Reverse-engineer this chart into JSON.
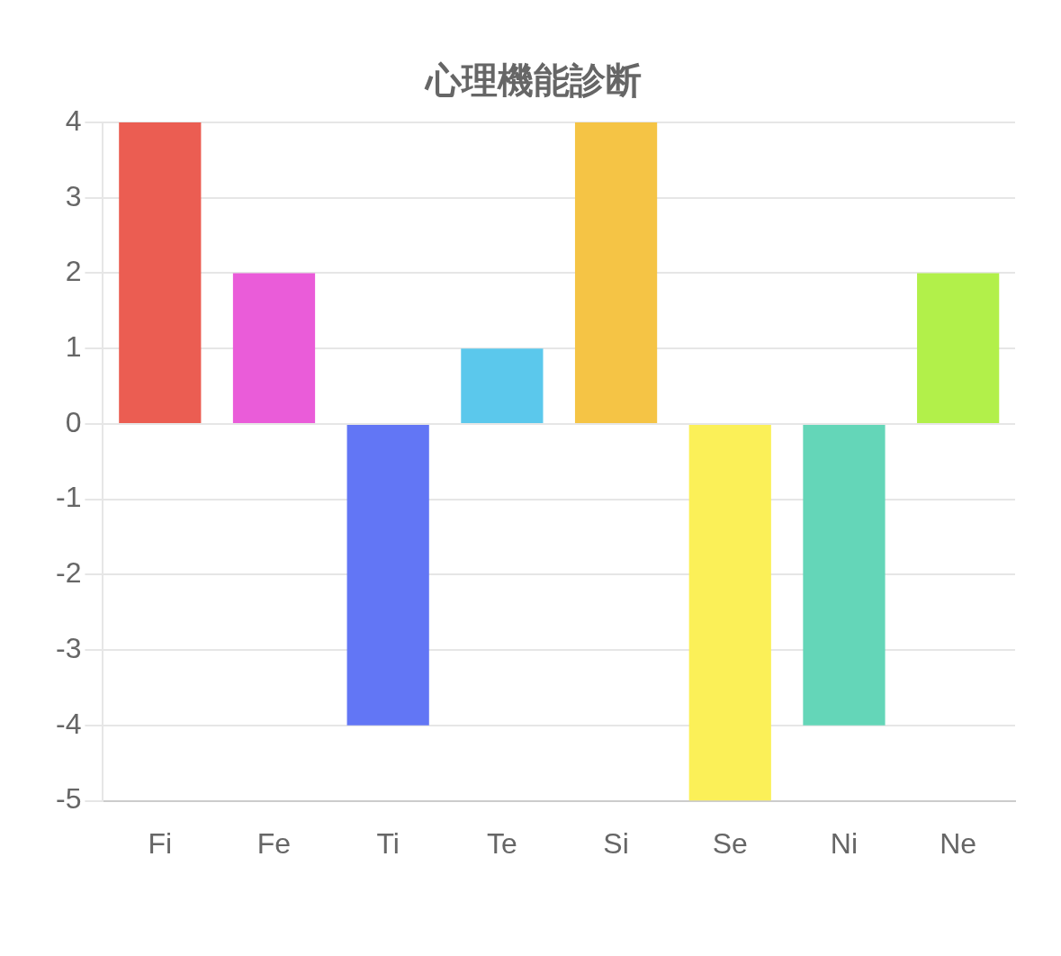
{
  "chart_data": {
    "type": "bar",
    "title": "心理機能診断",
    "categories": [
      "Fi",
      "Fe",
      "Ti",
      "Te",
      "Si",
      "Se",
      "Ni",
      "Ne"
    ],
    "values": [
      4,
      2,
      -4,
      1,
      4,
      -5,
      -4,
      2
    ],
    "colors": [
      "#eb5d52",
      "#ea5cd9",
      "#6276f5",
      "#5bc8ec",
      "#f5c445",
      "#fbf058",
      "#64d6b8",
      "#b2f04a"
    ],
    "ylim": [
      -5,
      4
    ],
    "yticks": [
      -5,
      -4,
      -3,
      -2,
      -1,
      0,
      1,
      2,
      3,
      4
    ],
    "grid": "y",
    "legend": false
  }
}
